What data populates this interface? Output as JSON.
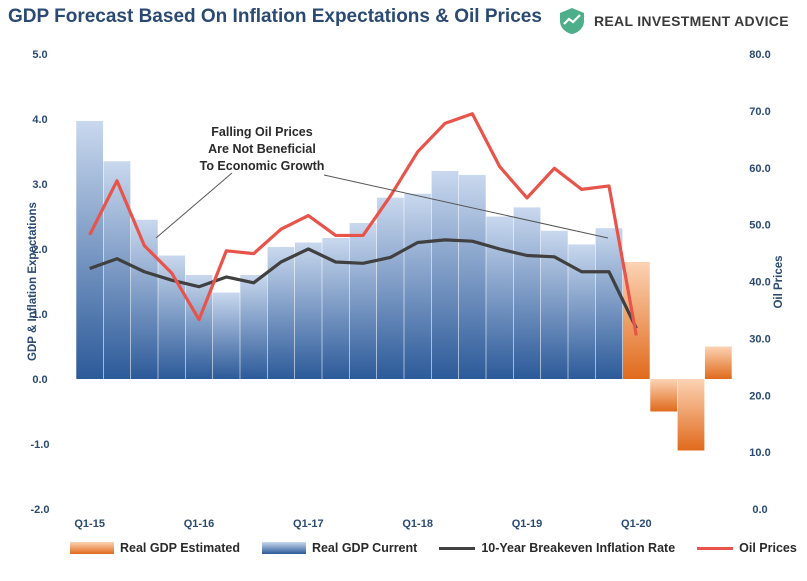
{
  "header": {
    "title": "GDP Forecast Based On Inflation Expectations & Oil Prices",
    "brand": "REAL INVESTMENT ADVICE"
  },
  "colors": {
    "title": "#2a4a73",
    "axis_text": "#2a4a73",
    "gdp_current_top": "#c9d8ee",
    "gdp_current_bottom": "#2c5a99",
    "gdp_estimated_top": "#fcd3b4",
    "gdp_estimated_bottom": "#e06a1c",
    "breakeven_line": "#404040",
    "oil_line": "#e8534a",
    "logo": "#4caf8a"
  },
  "chart_data": {
    "type": "bar+line",
    "title": "GDP Forecast Based On Inflation Expectations & Oil Prices",
    "ylabel": "GDP & Inflation Expectations",
    "y2label": "Oil Prices",
    "ylim": [
      -2.0,
      5.0
    ],
    "y2lim": [
      0,
      80
    ],
    "yticks": [
      "-2.0",
      "-1.0",
      "0.0",
      "1.0",
      "2.0",
      "3.0",
      "4.0",
      "5.0"
    ],
    "y2ticks": [
      "0.0",
      "10.0",
      "20.0",
      "30.0",
      "40.0",
      "50.0",
      "60.0",
      "70.0",
      "80.0"
    ],
    "xticks": [
      {
        "index": 0,
        "label": "Q1-15"
      },
      {
        "index": 4,
        "label": "Q1-16"
      },
      {
        "index": 8,
        "label": "Q1-17"
      },
      {
        "index": 12,
        "label": "Q1-18"
      },
      {
        "index": 16,
        "label": "Q1-19"
      },
      {
        "index": 20,
        "label": "Q1-20"
      }
    ],
    "n_periods": 24,
    "series": [
      {
        "name": "Real GDP Estimated",
        "type": "bar",
        "axis": "left",
        "start_index": 20,
        "values": [
          1.8,
          -0.5,
          -1.1,
          0.5
        ]
      },
      {
        "name": "Real GDP Current",
        "type": "bar",
        "axis": "left",
        "start_index": 0,
        "values": [
          3.97,
          3.35,
          2.45,
          1.9,
          1.6,
          1.33,
          1.6,
          2.03,
          2.1,
          2.17,
          2.4,
          2.79,
          2.85,
          3.2,
          3.14,
          2.5,
          2.64,
          2.28,
          2.07,
          2.32
        ]
      },
      {
        "name": "10-Year Breakeven Inflation Rate",
        "type": "line",
        "axis": "left",
        "start_index": 0,
        "values": [
          1.7,
          1.85,
          1.65,
          1.52,
          1.42,
          1.57,
          1.48,
          1.8,
          2.0,
          1.8,
          1.78,
          1.87,
          2.1,
          2.14,
          2.12,
          2.0,
          1.9,
          1.88,
          1.65,
          1.65,
          0.78
        ]
      },
      {
        "name": "Oil Prices",
        "type": "line",
        "axis": "right",
        "start_index": 0,
        "values": [
          48.2,
          57.7,
          46.3,
          41.5,
          33.3,
          45.4,
          44.9,
          49.2,
          51.6,
          48.1,
          48.1,
          55.0,
          62.8,
          67.8,
          69.5,
          60.2,
          54.7,
          59.9,
          56.2,
          56.8,
          30.5
        ]
      }
    ],
    "annotation": {
      "lines": [
        "Falling Oil Prices",
        "Are Not Beneficial",
        "To Economic Growth"
      ]
    },
    "legend": [
      "Real GDP Estimated",
      "Real GDP Current",
      "10-Year Breakeven Inflation Rate",
      "Oil Prices"
    ]
  }
}
